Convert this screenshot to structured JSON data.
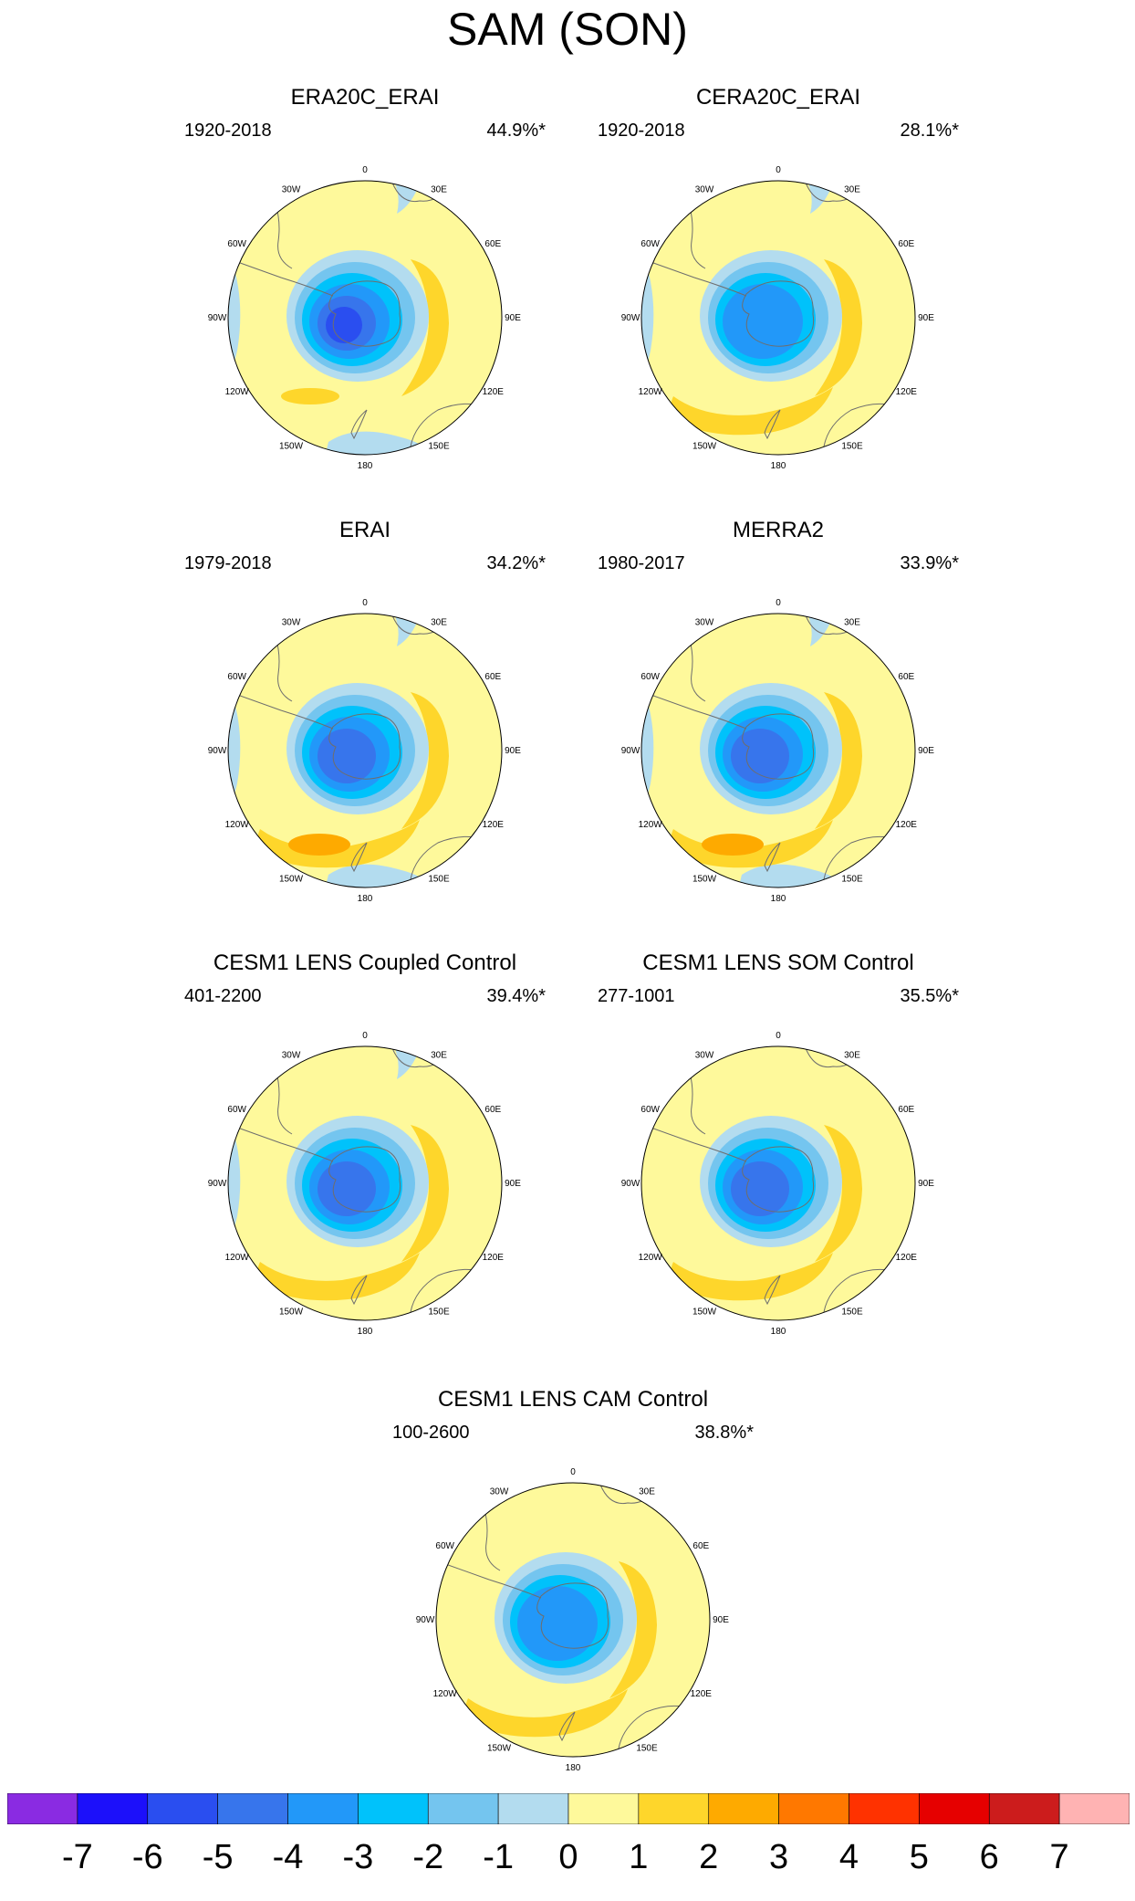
{
  "title": "SAM (SON)",
  "colors": {
    "ocean_blue": "#b3dcef",
    "land_line": "#6e6e6e",
    "neutral": "#fef99b",
    "pos1": "#fed62b",
    "pos2": "#feaa00",
    "neg1": "#b3dcef",
    "neg2": "#74c5ef",
    "neg3": "#00c2fb",
    "neg4": "#2298f9",
    "neg5": "#3775ec",
    "neg6": "#2a4ef0",
    "neg7": "#1c10fa"
  },
  "panels": [
    {
      "title": "ERA20C_ERAI",
      "period": "1920-2018",
      "pct": "44.9%*",
      "ticks": [
        "0",
        "30E",
        "60E",
        "90E",
        "120E",
        "150E",
        "180",
        "150W",
        "120W",
        "90W",
        "60W",
        "30W"
      ]
    },
    {
      "title": "CERA20C_ERAI",
      "period": "1920-2018",
      "pct": "28.1%*",
      "ticks": [
        "0",
        "30E",
        "60E",
        "90E",
        "120E",
        "150E",
        "180",
        "150W",
        "120W",
        "90W",
        "60W",
        "30W"
      ]
    },
    {
      "title": "ERAI",
      "period": "1979-2018",
      "pct": "34.2%*",
      "ticks": [
        "0",
        "30E",
        "60E",
        "90E",
        "120E",
        "150E",
        "180",
        "150W",
        "120W",
        "90W",
        "60W",
        "30W"
      ]
    },
    {
      "title": "MERRA2",
      "period": "1980-2017",
      "pct": "33.9%*",
      "ticks": [
        "0",
        "30E",
        "60E",
        "90E",
        "120E",
        "150E",
        "180",
        "150W",
        "120W",
        "90W",
        "60W",
        "30W"
      ]
    },
    {
      "title": "CESM1 LENS Coupled Control",
      "period": "401-2200",
      "pct": "39.4%*",
      "ticks": [
        "0",
        "30E",
        "60E",
        "90E",
        "120E",
        "150E",
        "180",
        "150W",
        "120W",
        "90W",
        "60W",
        "30W"
      ]
    },
    {
      "title": "CESM1 LENS SOM Control",
      "period": "277-1001",
      "pct": "35.5%*",
      "ticks": [
        "0",
        "30E",
        "60E",
        "90E",
        "120E",
        "150E",
        "180",
        "150W",
        "120W",
        "90W",
        "60W",
        "30W"
      ]
    },
    {
      "title": "CESM1 LENS CAM Control",
      "period": "100-2600",
      "pct": "38.8%*",
      "ticks": [
        "0",
        "30E",
        "60E",
        "90E",
        "120E",
        "150E",
        "180",
        "150W",
        "120W",
        "90W",
        "60W",
        "30W"
      ]
    }
  ],
  "colorbar": {
    "labels": [
      "-7",
      "-6",
      "-5",
      "-4",
      "-3",
      "-2",
      "-1",
      "0",
      "1",
      "2",
      "3",
      "4",
      "5",
      "6",
      "7"
    ],
    "colors": [
      "#8a2be2",
      "#1c10fa",
      "#2a4ef0",
      "#3775ec",
      "#2298f9",
      "#00c2fb",
      "#74c5ef",
      "#b3dcef",
      "#fef99b",
      "#fed62b",
      "#feaa00",
      "#ff7800",
      "#ff3200",
      "#e60000",
      "#cc1c1c",
      "#ffb3b3"
    ]
  }
}
